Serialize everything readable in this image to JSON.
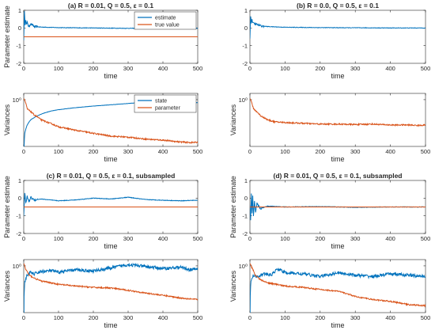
{
  "colors": {
    "estimate": "#0072BD",
    "true_value": "#D95319",
    "state": "#0072BD",
    "parameter": "#D95319"
  },
  "chart_data": [
    {
      "id": "a_top",
      "type": "line",
      "title": "(a) R = 0.01, Q = 0.5, ε = 0.1",
      "xlabel": "time",
      "ylabel": "Parameter estimate",
      "xlim": [
        0,
        500
      ],
      "ylim": [
        -2,
        1
      ],
      "xticks": [
        "0",
        "100",
        "200",
        "300",
        "400",
        "500"
      ],
      "yticks": [
        "-2",
        "-1",
        "0",
        "1"
      ],
      "legend": {
        "position": "top-right",
        "entries": [
          "estimate",
          "true value"
        ]
      },
      "series": [
        {
          "name": "estimate",
          "kind": "estimate",
          "x": [
            0,
            2,
            4,
            6,
            8,
            10,
            15,
            20,
            30,
            50,
            100,
            200,
            300,
            400,
            500
          ],
          "values": [
            -0.7,
            1.0,
            0.1,
            0.5,
            0.2,
            0.3,
            0.05,
            0.25,
            0.08,
            0.05,
            0.02,
            0.0,
            -0.02,
            -0.02,
            -0.02
          ]
        },
        {
          "name": "true value",
          "kind": "true",
          "x": [
            0,
            500
          ],
          "values": [
            -0.5,
            -0.5
          ]
        }
      ]
    },
    {
      "id": "a_bottom",
      "type": "line",
      "title": "",
      "xlabel": "time",
      "ylabel": "Variances",
      "xlim": [
        0,
        500
      ],
      "log_scale_y": true,
      "xticks": [
        "0",
        "100",
        "200",
        "300",
        "400",
        "500"
      ],
      "yticks": [
        "10⁰"
      ],
      "legend": {
        "position": "top-right",
        "entries": [
          "state",
          "parameter"
        ]
      },
      "series": [
        {
          "name": "state",
          "kind": "state",
          "x": [
            0,
            3,
            10,
            20,
            40,
            60,
            80,
            100,
            150,
            200,
            250,
            300,
            330,
            360,
            400,
            450,
            500
          ],
          "values": [
            0.002,
            0.08,
            0.15,
            0.22,
            0.3,
            0.37,
            0.43,
            0.47,
            0.55,
            0.62,
            0.68,
            0.75,
            0.8,
            0.82,
            0.82,
            0.81,
            0.8
          ]
        },
        {
          "name": "parameter",
          "kind": "param",
          "x": [
            0,
            10,
            30,
            50,
            70,
            100,
            150,
            200,
            250,
            300,
            350,
            400,
            450,
            480,
            500
          ],
          "values": [
            1.1,
            0.5,
            0.32,
            0.22,
            0.18,
            0.13,
            0.1,
            0.08,
            0.065,
            0.06,
            0.052,
            0.048,
            0.042,
            0.04,
            0.041
          ]
        }
      ]
    },
    {
      "id": "b_top",
      "type": "line",
      "title": "(b) R = 0.0, Q = 0.5, ε = 0.1",
      "xlabel": "time",
      "ylabel": "",
      "xlim": [
        0,
        500
      ],
      "ylim": [
        -2,
        1
      ],
      "xticks": [
        "0",
        "100",
        "200",
        "300",
        "400",
        "500"
      ],
      "yticks": [
        "-2",
        "-1",
        "0",
        "1"
      ],
      "series": [
        {
          "name": "",
          "kind": "estimate",
          "x": [
            0,
            2,
            4,
            6,
            10,
            20,
            30,
            50,
            100,
            200,
            300,
            400,
            500
          ],
          "values": [
            -0.6,
            0.7,
            0.3,
            0.45,
            0.25,
            0.2,
            0.12,
            0.08,
            0.04,
            0.02,
            0.01,
            0.0,
            0.0
          ]
        }
      ]
    },
    {
      "id": "b_bottom",
      "type": "line",
      "title": "",
      "xlabel": "time",
      "ylabel": "Variances",
      "xlim": [
        0,
        500
      ],
      "log_scale_y": true,
      "xticks": [
        "0",
        "100",
        "200",
        "300",
        "400",
        "500"
      ],
      "yticks": [
        "10⁰"
      ],
      "series": [
        {
          "name": "",
          "kind": "param",
          "x": [
            0,
            10,
            30,
            50,
            70,
            100,
            150,
            200,
            250,
            300,
            350,
            400,
            450,
            480,
            500
          ],
          "values": [
            1.1,
            0.5,
            0.3,
            0.22,
            0.19,
            0.18,
            0.17,
            0.16,
            0.16,
            0.155,
            0.16,
            0.15,
            0.15,
            0.145,
            0.15
          ]
        }
      ]
    },
    {
      "id": "c_top",
      "type": "line",
      "title": "(c) R = 0.01, Q = 0.5, ε = 0.1, subsampled",
      "xlabel": "time",
      "ylabel": "Parameter estimate",
      "xlim": [
        0,
        500
      ],
      "ylim": [
        -2,
        1
      ],
      "xticks": [
        "0",
        "100",
        "200",
        "300",
        "400",
        "500"
      ],
      "yticks": [
        "-2",
        "-1",
        "0",
        "1"
      ],
      "series": [
        {
          "name": "",
          "kind": "estimate",
          "x": [
            0,
            3,
            6,
            10,
            15,
            20,
            30,
            50,
            100,
            150,
            200,
            250,
            300,
            350,
            400,
            450,
            500
          ],
          "values": [
            -1.0,
            0.3,
            -0.3,
            0.1,
            -0.2,
            0.05,
            -0.1,
            -0.05,
            -0.15,
            -0.1,
            0.0,
            -0.05,
            0.05,
            -0.08,
            -0.12,
            -0.15,
            -0.12
          ]
        },
        {
          "name": "",
          "kind": "true",
          "x": [
            0,
            500
          ],
          "values": [
            -0.5,
            -0.5
          ]
        }
      ]
    },
    {
      "id": "c_bottom",
      "type": "line",
      "title": "",
      "xlabel": "time",
      "ylabel": "Variances",
      "xlim": [
        0,
        500
      ],
      "log_scale_y": true,
      "xticks": [
        "0",
        "100",
        "200",
        "300",
        "400",
        "500"
      ],
      "yticks": [
        "10⁰"
      ],
      "series": [
        {
          "name": "",
          "kind": "state",
          "x": [
            0,
            3,
            10,
            20,
            30,
            50,
            80,
            100,
            150,
            200,
            250,
            300,
            350,
            400,
            450,
            480,
            500
          ],
          "values": [
            0.003,
            0.3,
            0.5,
            0.6,
            0.55,
            0.65,
            0.7,
            0.62,
            0.75,
            0.68,
            0.85,
            1.1,
            0.95,
            0.82,
            0.9,
            0.75,
            0.8
          ]
        },
        {
          "name": "",
          "kind": "param",
          "x": [
            0,
            5,
            15,
            30,
            50,
            100,
            150,
            200,
            250,
            300,
            350,
            400,
            450,
            500
          ],
          "values": [
            1.2,
            0.8,
            0.5,
            0.4,
            0.32,
            0.25,
            0.22,
            0.2,
            0.19,
            0.16,
            0.13,
            0.11,
            0.09,
            0.08
          ]
        }
      ]
    },
    {
      "id": "d_top",
      "type": "line",
      "title": "(d) R = 0.01, Q = 0.5, ε = 0.1, subsampled",
      "xlabel": "time",
      "ylabel": "Parameter estimate",
      "xlim": [
        0,
        500
      ],
      "ylim": [
        -2,
        1
      ],
      "xticks": [
        "0",
        "100",
        "200",
        "300",
        "400",
        "500"
      ],
      "yticks": [
        "-2",
        "-1",
        "0",
        "1"
      ],
      "series": [
        {
          "name": "",
          "kind": "estimate",
          "x": [
            0,
            2,
            4,
            6,
            8,
            10,
            13,
            16,
            20,
            30,
            50,
            100,
            200,
            300,
            400,
            500
          ],
          "values": [
            -0.4,
            -1.3,
            0.3,
            -0.9,
            0.1,
            -1.0,
            -0.2,
            -0.8,
            -0.3,
            -0.6,
            -0.45,
            -0.5,
            -0.48,
            -0.52,
            -0.5,
            -0.5
          ]
        },
        {
          "name": "",
          "kind": "true",
          "x": [
            0,
            500
          ],
          "values": [
            -0.5,
            -0.5
          ]
        }
      ]
    },
    {
      "id": "d_bottom",
      "type": "line",
      "title": "",
      "xlabel": "time",
      "ylabel": "Variances",
      "xlim": [
        0,
        500
      ],
      "log_scale_y": true,
      "xticks": [
        "0",
        "100",
        "200",
        "300",
        "400",
        "500"
      ],
      "yticks": [
        "10⁰"
      ],
      "series": [
        {
          "name": "",
          "kind": "state",
          "x": [
            0,
            3,
            10,
            20,
            40,
            60,
            80,
            100,
            150,
            200,
            250,
            300,
            350,
            400,
            450,
            500
          ],
          "values": [
            0.01,
            0.3,
            0.5,
            0.45,
            0.55,
            0.5,
            0.8,
            0.6,
            0.55,
            0.45,
            0.6,
            0.5,
            0.45,
            0.55,
            0.5,
            0.45
          ]
        },
        {
          "name": "",
          "kind": "param",
          "x": [
            0,
            5,
            15,
            30,
            50,
            100,
            150,
            200,
            250,
            300,
            350,
            400,
            450,
            500
          ],
          "values": [
            1.2,
            0.9,
            0.5,
            0.35,
            0.28,
            0.22,
            0.2,
            0.17,
            0.15,
            0.1,
            0.08,
            0.07,
            0.055,
            0.05
          ]
        }
      ]
    }
  ]
}
